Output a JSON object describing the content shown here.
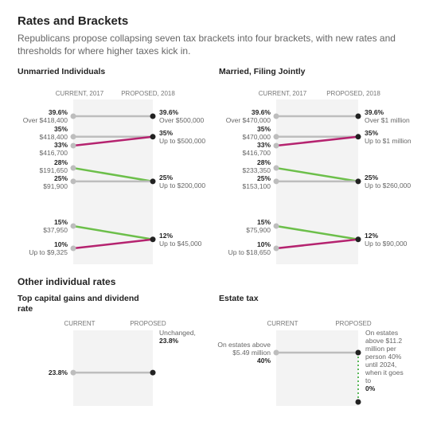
{
  "title": "Rates and Brackets",
  "subtitle": "Republicans propose collapsing seven tax brackets into four brackets, with new rates and thresholds for where higher taxes kick in.",
  "section_title": "Other individual rates",
  "chart_data": [
    {
      "type": "slope",
      "title": "Unmarried Individuals",
      "left_header": "CURRENT, 2017",
      "right_header": "PROPOSED, 2018",
      "ylim": [
        10,
        39.6
      ],
      "left_points": {
        "values": [
          39.6,
          35,
          33,
          28,
          25,
          15,
          10
        ],
        "value_labels": [
          "39.6%",
          "35%",
          "33%",
          "28%",
          "25%",
          "15%",
          "10%"
        ],
        "labels": [
          "Over $418,400",
          "$418,400",
          "$416,700",
          "$191,650",
          "$91,900",
          "$37,950",
          "Up to $9,325"
        ]
      },
      "right_points": {
        "values": [
          39.6,
          35,
          25,
          12
        ],
        "value_labels": [
          "39.6%",
          "35%",
          "25%",
          "12%"
        ],
        "labels": [
          "Over $500,000",
          "Up to $500,000",
          "Up to $200,000",
          "Up to $45,000"
        ]
      },
      "lines": [
        {
          "from": 39.6,
          "to": 39.6,
          "color": "#bdbdbd"
        },
        {
          "from": 35,
          "to": 35,
          "color": "#bdbdbd"
        },
        {
          "from": 33,
          "to": 35,
          "color": "#b5236f"
        },
        {
          "from": 28,
          "to": 25,
          "color": "#6cbf4a"
        },
        {
          "from": 25,
          "to": 25,
          "color": "#bdbdbd"
        },
        {
          "from": 15,
          "to": 12,
          "color": "#6cbf4a"
        },
        {
          "from": 10,
          "to": 12,
          "color": "#b5236f"
        }
      ]
    },
    {
      "type": "slope",
      "title": "Married, Filing Jointly",
      "left_header": "CURRENT, 2017",
      "right_header": "PROPOSED, 2018",
      "ylim": [
        10,
        39.6
      ],
      "left_points": {
        "values": [
          39.6,
          35,
          33,
          28,
          25,
          15,
          10
        ],
        "value_labels": [
          "39.6%",
          "35%",
          "33%",
          "28%",
          "25%",
          "15%",
          "10%"
        ],
        "labels": [
          "Over $470,000",
          "$470,000",
          "$416,700",
          "$233,350",
          "$153,100",
          "$75,900",
          "Up to $18,650"
        ]
      },
      "right_points": {
        "values": [
          39.6,
          35,
          25,
          12
        ],
        "value_labels": [
          "39.6%",
          "35%",
          "25%",
          "12%"
        ],
        "labels": [
          "Over $1 million",
          "Up to $1 million",
          "Up to $260,000",
          "Up to $90,000"
        ]
      },
      "lines": [
        {
          "from": 39.6,
          "to": 39.6,
          "color": "#bdbdbd"
        },
        {
          "from": 35,
          "to": 35,
          "color": "#bdbdbd"
        },
        {
          "from": 33,
          "to": 35,
          "color": "#b5236f"
        },
        {
          "from": 28,
          "to": 25,
          "color": "#6cbf4a"
        },
        {
          "from": 25,
          "to": 25,
          "color": "#bdbdbd"
        },
        {
          "from": 15,
          "to": 12,
          "color": "#6cbf4a"
        },
        {
          "from": 10,
          "to": 12,
          "color": "#b5236f"
        }
      ]
    },
    {
      "type": "slope",
      "title": "Top capital gains and dividend rate",
      "left_header": "CURRENT",
      "right_header": "PROPOSED",
      "ylim": [
        0,
        40
      ],
      "left_points": {
        "values": [
          23.8
        ],
        "value_labels": [
          "23.8%"
        ]
      },
      "right_points": {
        "values": [
          23.8
        ],
        "value_labels": [
          "23.8%"
        ],
        "labels": [
          "Unchanged,"
        ]
      },
      "lines": [
        {
          "from": 23.8,
          "to": 23.8,
          "color": "#bdbdbd"
        }
      ]
    },
    {
      "type": "slope",
      "title": "Estate tax",
      "left_header": "CURRENT",
      "right_header": "PROPOSED",
      "ylim": [
        0,
        40
      ],
      "left_points": {
        "values": [
          40
        ],
        "value_labels": [
          "40%"
        ],
        "labels": [
          "On estates above $5.49 million"
        ]
      },
      "right_points": {
        "values": [
          40,
          0
        ],
        "value_labels": [
          null,
          "0%"
        ]
      },
      "right_note": "On estates above $11.2 million per person 40% until 2024, when it goes to",
      "right_link": {
        "color": "#5cb85c",
        "dashed": true
      },
      "lines": [
        {
          "from": 40,
          "to": 40,
          "color": "#bdbdbd"
        }
      ]
    }
  ]
}
